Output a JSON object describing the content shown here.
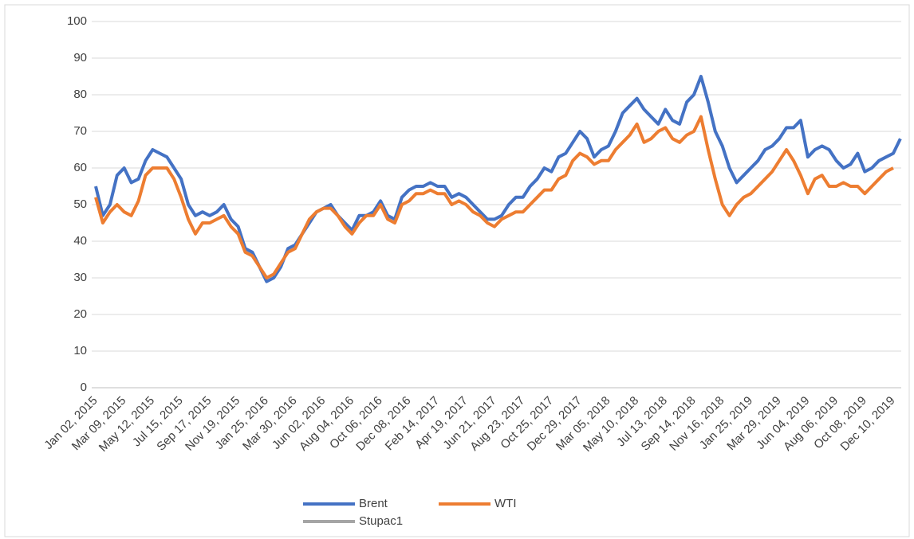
{
  "chart_data": {
    "type": "line",
    "categories": [
      "Jan 02, 2015",
      null,
      null,
      null,
      "Mar 09, 2015",
      null,
      null,
      null,
      "May 12, 2015",
      null,
      null,
      null,
      "Jul 15, 2015",
      null,
      null,
      null,
      "Sep 17, 2015",
      null,
      null,
      null,
      "Nov 19, 2015",
      null,
      null,
      null,
      "Jan 25, 2016",
      null,
      null,
      null,
      "Mar 30, 2016",
      null,
      null,
      null,
      "Jun 02, 2016",
      null,
      null,
      null,
      "Aug 04, 2016",
      null,
      null,
      null,
      "Oct 06, 2016",
      null,
      null,
      null,
      "Dec 08, 2016",
      null,
      null,
      null,
      "Feb 14, 2017",
      null,
      null,
      null,
      "Apr 19, 2017",
      null,
      null,
      null,
      "Jun 21, 2017",
      null,
      null,
      null,
      "Aug 23, 2017",
      null,
      null,
      null,
      "Oct 25, 2017",
      null,
      null,
      null,
      "Dec 29, 2017",
      null,
      null,
      null,
      "Mar 05, 2018",
      null,
      null,
      null,
      "May 10, 2018",
      null,
      null,
      null,
      "Jul 13, 2018",
      null,
      null,
      null,
      "Sep 14, 2018",
      null,
      null,
      null,
      "Nov 16, 2018",
      null,
      null,
      null,
      "Jan 25, 2019",
      null,
      null,
      null,
      "Mar 29, 2019",
      null,
      null,
      null,
      "Jun 04, 2019",
      null,
      null,
      null,
      "Aug 06, 2019",
      null,
      null,
      null,
      "Oct 08, 2019",
      null,
      null,
      null,
      "Dec 10, 2019",
      null
    ],
    "series": [
      {
        "name": "Brent",
        "color": "#4472c4",
        "values": [
          55,
          47,
          50,
          58,
          60,
          56,
          57,
          62,
          65,
          64,
          63,
          60,
          57,
          50,
          47,
          48,
          47,
          48,
          50,
          46,
          44,
          38,
          37,
          33,
          29,
          30,
          33,
          38,
          39,
          42,
          45,
          48,
          49,
          50,
          47,
          45,
          43,
          47,
          47,
          48,
          51,
          47,
          46,
          52,
          54,
          55,
          55,
          56,
          55,
          55,
          52,
          53,
          52,
          50,
          48,
          46,
          46,
          47,
          50,
          52,
          52,
          55,
          57,
          60,
          59,
          63,
          64,
          67,
          70,
          68,
          63,
          65,
          66,
          70,
          75,
          77,
          79,
          76,
          74,
          72,
          76,
          73,
          72,
          78,
          80,
          85,
          78,
          70,
          66,
          60,
          56,
          58,
          60,
          62,
          65,
          66,
          68,
          71,
          71,
          73,
          63,
          65,
          66,
          65,
          62,
          60,
          61,
          64,
          59,
          60,
          62,
          63,
          64,
          68
        ]
      },
      {
        "name": "WTI",
        "color": "#ed7d31",
        "values": [
          52,
          45,
          48,
          50,
          48,
          47,
          51,
          58,
          60,
          60,
          60,
          57,
          52,
          46,
          42,
          45,
          45,
          46,
          47,
          44,
          42,
          37,
          36,
          33,
          30,
          31,
          34,
          37,
          38,
          42,
          46,
          48,
          49,
          49,
          47,
          44,
          42,
          45,
          47,
          47,
          50,
          46,
          45,
          50,
          51,
          53,
          53,
          54,
          53,
          53,
          50,
          51,
          50,
          48,
          47,
          45,
          44,
          46,
          47,
          48,
          48,
          50,
          52,
          54,
          54,
          57,
          58,
          62,
          64,
          63,
          61,
          62,
          62,
          65,
          67,
          69,
          72,
          67,
          68,
          70,
          71,
          68,
          67,
          69,
          70,
          74,
          65,
          57,
          50,
          47,
          50,
          52,
          53,
          55,
          57,
          59,
          62,
          65,
          62,
          58,
          53,
          57,
          58,
          55,
          55,
          56,
          55,
          55,
          53,
          55,
          57,
          59,
          60,
          null
        ]
      },
      {
        "name": "Stupac1",
        "color": "#a5a5a5"
      }
    ],
    "ylim": [
      0,
      100
    ],
    "yticks": [
      0,
      10,
      20,
      30,
      40,
      50,
      60,
      70,
      80,
      90,
      100
    ],
    "grid": true,
    "legend": "bottom"
  }
}
